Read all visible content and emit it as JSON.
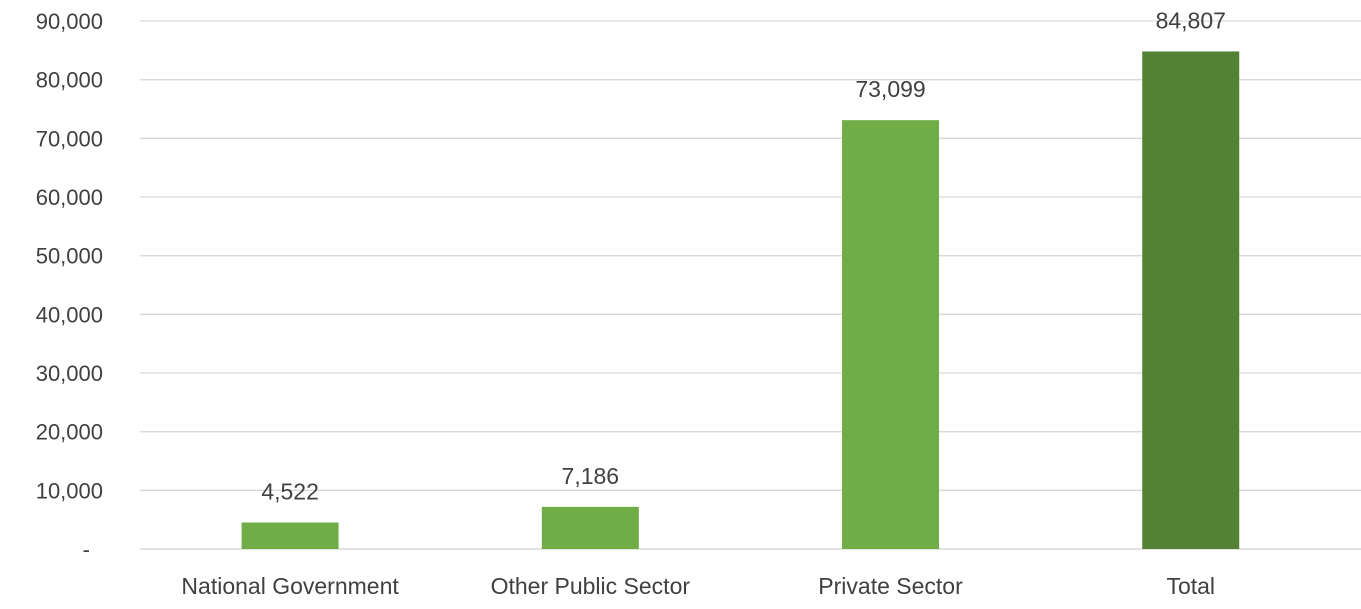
{
  "chart_data": {
    "type": "bar",
    "title": "",
    "xlabel": "",
    "ylabel": "",
    "categories": [
      "National Government",
      "Other Public Sector",
      "Private Sector",
      "Total"
    ],
    "values": [
      4522,
      7186,
      73099,
      84807
    ],
    "data_labels": [
      "4,522",
      "7,186",
      "73,099",
      "84,807"
    ],
    "ylim": [
      0,
      90000
    ],
    "y_ticks": [
      0,
      10000,
      20000,
      30000,
      40000,
      50000,
      60000,
      70000,
      80000,
      90000
    ],
    "y_tick_labels": [
      "-",
      "10,000",
      "20,000",
      "30,000",
      "40,000",
      "50,000",
      "60,000",
      "70,000",
      "80,000",
      "90,000"
    ],
    "bar_colors": [
      "#70ad47",
      "#70ad47",
      "#70ad47",
      "#548235"
    ],
    "grid": true,
    "legend": "none"
  }
}
